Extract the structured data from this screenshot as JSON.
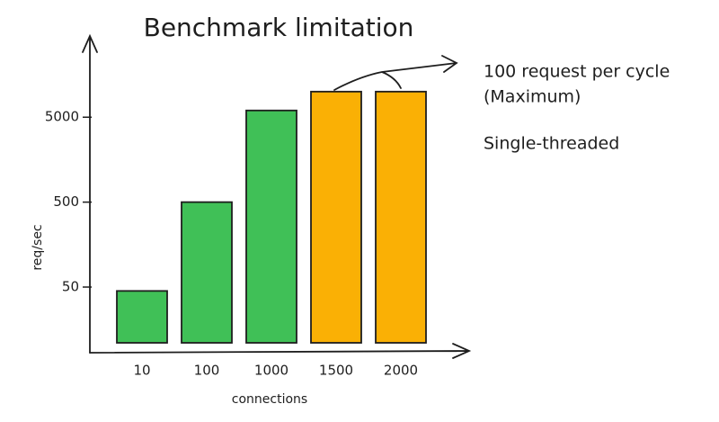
{
  "chart_data": {
    "type": "bar",
    "title": "Benchmark limitation",
    "x_label": "connections",
    "y_label": "req/sec",
    "categories": [
      "10",
      "100",
      "1000",
      "1500",
      "2000"
    ],
    "values": [
      45,
      500,
      6000,
      10000,
      10000
    ],
    "colors": [
      "#40c057",
      "#40c057",
      "#40c057",
      "#fab005",
      "#fab005"
    ],
    "log_y": true,
    "ylim": [
      10,
      40000
    ],
    "yticks": [
      50,
      500,
      5000
    ],
    "grid": false,
    "annotations": [
      "100 request per cycle",
      "(Maximum)",
      "Single-threaded"
    ]
  }
}
